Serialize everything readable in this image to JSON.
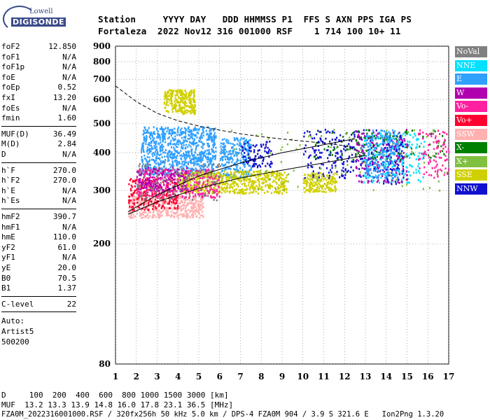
{
  "logo": {
    "line1": "Lowell",
    "line2": "DIGISONDE"
  },
  "header": {
    "labels": "Station     YYYY DAY   DDD HHMMSS P1  FFS S AXN PPS IGA PS",
    "values": "Fortaleza  2022 Nov12 316 001000 RSF    1 714 100 10+ 11"
  },
  "params": {
    "group1": [
      {
        "name": "foF2",
        "value": "12.850"
      },
      {
        "name": "foF1",
        "value": "N/A"
      },
      {
        "name": "foF1p",
        "value": "N/A"
      },
      {
        "name": "foE",
        "value": "N/A"
      },
      {
        "name": "foEp",
        "value": "0.52"
      },
      {
        "name": "fxI",
        "value": "13.20"
      },
      {
        "name": "foEs",
        "value": "N/A"
      },
      {
        "name": "fmin",
        "value": "1.60"
      }
    ],
    "group2": [
      {
        "name": "MUF(D)",
        "value": "36.49"
      },
      {
        "name": "M(D)",
        "value": "2.84"
      },
      {
        "name": "D",
        "value": "N/A"
      }
    ],
    "group3": [
      {
        "name": "h`F",
        "value": "270.0"
      },
      {
        "name": "h`F2",
        "value": "270.0"
      },
      {
        "name": "h`E",
        "value": "N/A"
      },
      {
        "name": "h`Es",
        "value": "N/A"
      }
    ],
    "group4": [
      {
        "name": "hmF2",
        "value": "390.7"
      },
      {
        "name": "hmF1",
        "value": "N/A"
      },
      {
        "name": "hmE",
        "value": "110.0"
      },
      {
        "name": "yF2",
        "value": "61.0"
      },
      {
        "name": "yF1",
        "value": "N/A"
      },
      {
        "name": "yE",
        "value": "20.0"
      },
      {
        "name": "B0",
        "value": "70.5"
      },
      {
        "name": "B1",
        "value": "1.37"
      }
    ],
    "clevel": {
      "name": "C-level",
      "value": "22"
    },
    "auto_label": "Auto:",
    "artist": "Artist5",
    "code": "500200"
  },
  "footer": {
    "line1": "D     100  200  400  600  800 1000 1500 3000 [km]",
    "line2": "MUF  13.2 13.3 13.9 14.8 16.0 17.8 23.1 36.5 [MHz]",
    "line3": "FZA0M_2022316001000.RSF / 320fx256h 50 kHz 5.0 km / DPS-4 FZA0M 904 / 3.9 S 321.6 E   Ion2Png 1.3.20"
  },
  "chart_data": {
    "type": "scatter",
    "xlim": [
      1,
      17
    ],
    "ylim": [
      80,
      900
    ],
    "yscale": "log",
    "x_ticks": [
      1,
      2,
      3,
      4,
      5,
      6,
      7,
      8,
      9,
      10,
      11,
      12,
      13,
      14,
      15,
      16,
      17
    ],
    "y_ticks": [
      80,
      200,
      300,
      400,
      500,
      600,
      700,
      800,
      900
    ],
    "grid": true,
    "legend_placement": "right",
    "legend": [
      {
        "name": "NoVal",
        "color": "#808080"
      },
      {
        "name": "NNE",
        "color": "#00e0ff"
      },
      {
        "name": "E",
        "color": "#30a0ff"
      },
      {
        "name": "W",
        "color": "#b000b0"
      },
      {
        "name": "Vo-",
        "color": "#ff20a0"
      },
      {
        "name": "Vo+",
        "color": "#ff0030"
      },
      {
        "name": "SSW",
        "color": "#ffb0b0"
      },
      {
        "name": "X-",
        "color": "#008000"
      },
      {
        "name": "X+",
        "color": "#80c040"
      },
      {
        "name": "SSE",
        "color": "#d0d000"
      },
      {
        "name": "NNW",
        "color": "#1010d0"
      }
    ],
    "clusters": [
      {
        "series": "E",
        "x": [
          2.2,
          5.8
        ],
        "y": [
          340,
          490
        ],
        "n": 900
      },
      {
        "series": "E",
        "x": [
          6.0,
          7.5
        ],
        "y": [
          330,
          450
        ],
        "n": 250
      },
      {
        "series": "SSE",
        "x": [
          3.3,
          4.8
        ],
        "y": [
          540,
          650
        ],
        "n": 260
      },
      {
        "series": "SSE",
        "x": [
          4.0,
          9.2
        ],
        "y": [
          295,
          350
        ],
        "n": 650
      },
      {
        "series": "SSE",
        "x": [
          10.0,
          11.6
        ],
        "y": [
          298,
          345
        ],
        "n": 180
      },
      {
        "series": "SSW",
        "x": [
          1.6,
          5.2
        ],
        "y": [
          245,
          290
        ],
        "n": 450
      },
      {
        "series": "Vo+",
        "x": [
          1.6,
          4.0
        ],
        "y": [
          260,
          330
        ],
        "n": 250
      },
      {
        "series": "Vo-",
        "x": [
          2.0,
          6.0
        ],
        "y": [
          285,
          355
        ],
        "n": 320
      },
      {
        "series": "W",
        "x": [
          2.0,
          4.5
        ],
        "y": [
          300,
          360
        ],
        "n": 160
      },
      {
        "series": "NNW",
        "x": [
          7.0,
          8.5
        ],
        "y": [
          360,
          440
        ],
        "n": 90
      },
      {
        "series": "NNW",
        "x": [
          10.0,
          13.5
        ],
        "y": [
          330,
          480
        ],
        "n": 220
      },
      {
        "series": "NNW",
        "x": [
          13.8,
          14.8
        ],
        "y": [
          315,
          460
        ],
        "n": 140
      },
      {
        "series": "NNE",
        "x": [
          12.8,
          15.8
        ],
        "y": [
          320,
          470
        ],
        "n": 240
      },
      {
        "series": "W",
        "x": [
          12.5,
          15.0
        ],
        "y": [
          320,
          480
        ],
        "n": 160
      },
      {
        "series": "X-",
        "x": [
          10.5,
          16.8
        ],
        "y": [
          380,
          480
        ],
        "n": 110
      },
      {
        "series": "X+",
        "x": [
          6.5,
          16.8
        ],
        "y": [
          300,
          480
        ],
        "n": 80
      },
      {
        "series": "E",
        "x": [
          13.0,
          14.6
        ],
        "y": [
          330,
          480
        ],
        "n": 160
      },
      {
        "series": "Vo-",
        "x": [
          15.5,
          17.0
        ],
        "y": [
          330,
          480
        ],
        "n": 90
      },
      {
        "series": "NoVal",
        "x": [
          2.0,
          6.0
        ],
        "y": [
          280,
          380
        ],
        "n": 120
      }
    ],
    "curves": [
      {
        "style": "dashed",
        "x": [
          1.0,
          2.0,
          3.0,
          4.0,
          5.0,
          6.0,
          7.0,
          8.0,
          9.0,
          10.0,
          11.0,
          12.0,
          13.0
        ],
        "y": [
          665,
          590,
          540,
          510,
          490,
          475,
          462,
          452,
          444,
          437,
          430,
          422,
          395
        ]
      },
      {
        "style": "solid",
        "x": [
          1.6,
          3.0,
          5.0,
          7.0,
          9.0,
          11.0,
          12.5
        ],
        "y": [
          255,
          290,
          335,
          370,
          400,
          425,
          445
        ]
      },
      {
        "style": "solid",
        "x": [
          1.6,
          3.0,
          5.0,
          7.0,
          9.0,
          11.0,
          13.0
        ],
        "y": [
          250,
          275,
          305,
          330,
          350,
          370,
          392
        ]
      }
    ]
  }
}
